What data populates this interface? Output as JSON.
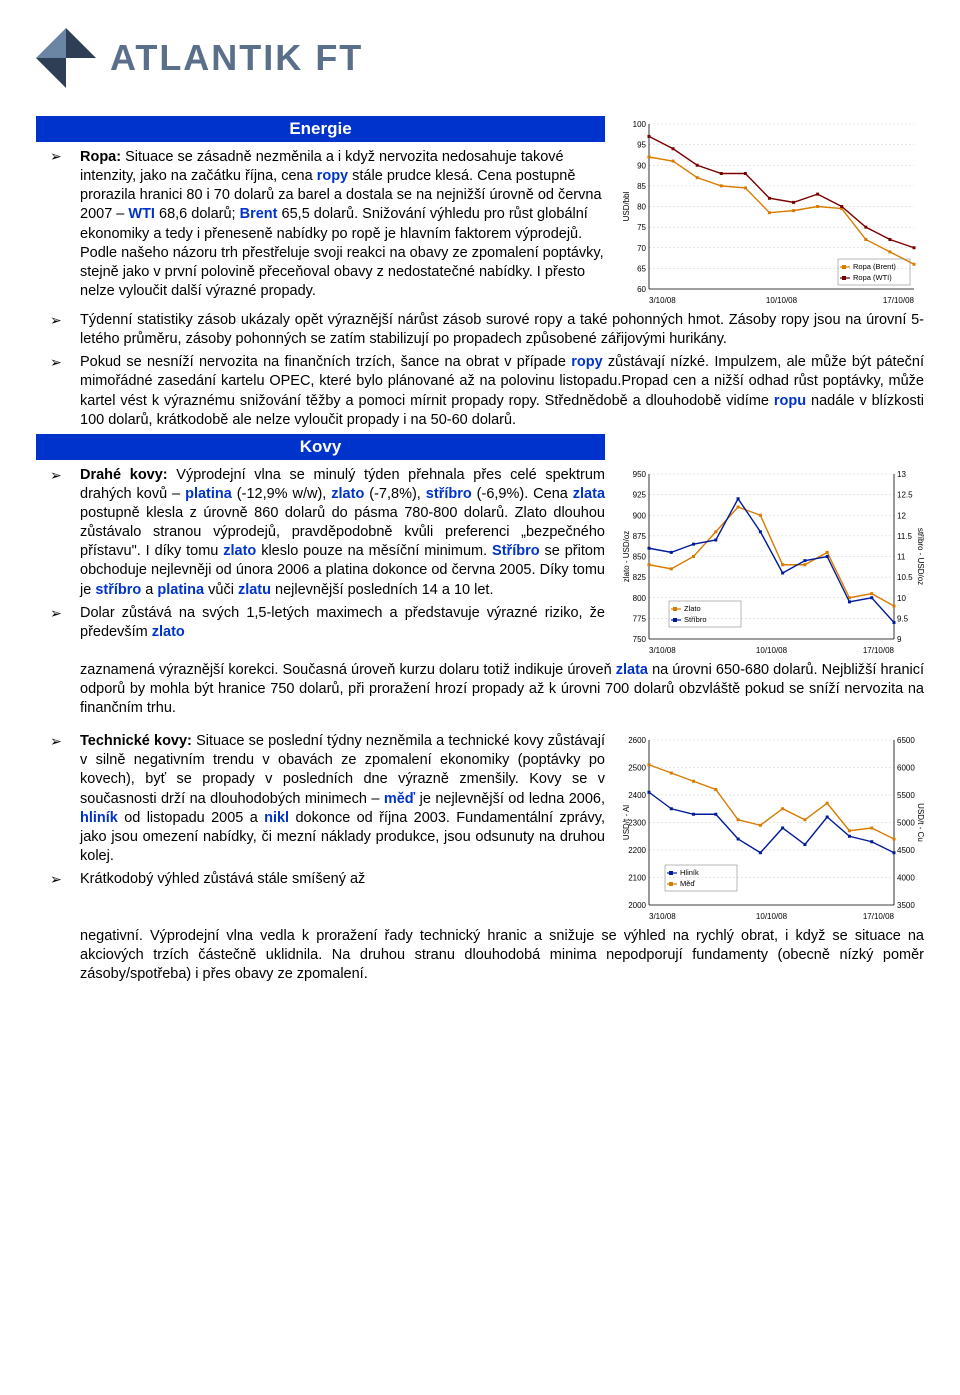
{
  "logo": {
    "text1": "ATLANTIK",
    "text2": "FT"
  },
  "colors": {
    "heading_bg": "#0033cc",
    "heading_fg": "#ffffff",
    "text_blue": "#0033cc",
    "logo_dark": "#2e3f55",
    "logo_light": "#6b85a5",
    "series_orange": "#d97b00",
    "series_darkred": "#7a0000",
    "series_navy": "#001a99",
    "grid": "#cccccc"
  },
  "energie": {
    "heading": "Energie",
    "para1_pre": "Ropa:",
    "para1": "Situace se zásadně nezměnila a i když nervozita nedosahuje takové intenzity, jako na začátku října, cena ",
    "para1_b1": "ropy",
    "para1_c": " stále prudce klesá. Cena postupně prorazila hranici 80 i 70 dolarů za barel a dostala se na nejnižší úrovně od června 2007 – ",
    "para1_b2": "WTI",
    "para1_c2": " 68,6 dolarů; ",
    "para1_b3": "Brent",
    "para1_c3": " 65,5 dolarů. Snižování výhledu pro růst globální ekonomiky a tedy i přeneseně nabídky po ropě je hlavním faktorem výprodejů. Podle našeho názoru trh přestřeluje svoji reakci na obavy ze zpomalení poptávky, stejně jako v první polovině přeceňoval obavy z nedostatečné nabídky. I přesto nelze vyloučit další výrazné propady.",
    "bullet2": "Týdenní statistiky zásob ukázaly opět výraznější nárůst zásob surové ropy a také pohonných hmot. Zásoby ropy jsou na úrovní 5-letého průměru, zásoby pohonných se zatím stabilizují po propadech způsobené zářijovými hurikány.",
    "bullet3_a": "Pokud se nesníží nervozita na finančních trzích, šance na obrat v případe ",
    "bullet3_b": "ropy",
    "bullet3_c": " zůstávají nízké. Impulzem, ale může být páteční mimořádné zasedání kartelu OPEC, které bylo plánované až na polovinu listopadu.Propad cen a nižší odhad růst poptávky, může kartel vést k výraznému snižování těžby a pomoci mírnit propady ropy. Střednědobě a dlouhodobě vidíme ",
    "bullet3_d": "ropu",
    "bullet3_e": " nadále v blízkosti 100 dolarů, krátkodobě ale nelze vyloučit propady i na 50-60 dolarů.",
    "chart": {
      "ylabel": "USD/bbl",
      "ylim": [
        60,
        100
      ],
      "ytick_step": 5,
      "xlabels": [
        "3/10/08",
        "10/10/08",
        "17/10/08"
      ],
      "legend": [
        "Ropa (Brent)",
        "Ropa (WTI)"
      ],
      "series": [
        {
          "name": "Ropa (Brent)",
          "color": "#d97b00",
          "values": [
            92,
            91,
            87,
            85,
            84.5,
            78.5,
            79,
            80,
            79.5,
            72,
            69,
            66
          ]
        },
        {
          "name": "Ropa (WTI)",
          "color": "#7a0000",
          "values": [
            97,
            94,
            90,
            88,
            88,
            82,
            81,
            83,
            80,
            75,
            72,
            70
          ]
        }
      ]
    }
  },
  "kovy": {
    "heading": "Kovy",
    "p1_a": "Drahé kovy:",
    "p1_b": " Výprodejní vlna se minulý týden přehnala přes celé spektrum drahých kovů – ",
    "p1_c": "platina",
    "p1_d": " (-12,9% w/w), ",
    "p1_e": "zlato",
    "p1_f": " (-7,8%),",
    "p1_g": "stříbro",
    "p1_h": " (-6,9%). Cena ",
    "p1_i": "zlata",
    "p1_j": " postupně klesla z úrovně 860 dolarů do pásma 780-800 dolarů. Zlato dlouhou zůstávalo stranou výprodejů, pravděpodobně kvůli preferenci „bezpečného přístavu\". I díky tomu ",
    "p1_k": "zlato",
    "p1_l": " kleslo pouze na měsíční minimum. ",
    "p1_m": "Stříbro",
    "p1_n": " se přitom obchoduje nejlevněji od února 2006 a platina dokonce od června 2005. Díky tomu je ",
    "p1_o": "stříbro",
    "p1_p": " a ",
    "p1_q": "platina",
    "p1_r": " vůči ",
    "p1_s": "zlatu",
    "p1_t": " nejlevnější posledních 14 a 10 let.",
    "p2_a": "Dolar zůstává na svých 1,5-letých maximech a představuje výrazné riziko, že především ",
    "p2_b": "zlato",
    "p2_cont": "zaznamená výraznější korekci. Současná úroveň kurzu dolaru totiž indikuje úroveň ",
    "p2_c": "zlata",
    "p2_d": " na úrovni 650-680 dolarů. Nejbližší hranicí odporů by mohla být hranice 750 dolarů, při proražení hrozí propady až k úrovni 700 dolarů obzvláště pokud se sníží nervozita na finančním trhu.",
    "chart": {
      "ylabel_left": "zlato - USD/oz",
      "ylabel_right": "stříbro - USD/oz",
      "ylim_left": [
        750,
        950
      ],
      "ytick_left": 25,
      "ylim_right": [
        9,
        13
      ],
      "ytick_right": 0.5,
      "xlabels": [
        "3/10/08",
        "10/10/08",
        "17/10/08"
      ],
      "legend": [
        "Zlato",
        "Stříbro"
      ],
      "series": [
        {
          "name": "Zlato",
          "color": "#d97b00",
          "values": [
            840,
            835,
            850,
            880,
            910,
            900,
            840,
            840,
            855,
            800,
            805,
            790
          ]
        },
        {
          "name": "Stříbro",
          "color": "#001a99",
          "values": [
            11.2,
            11.1,
            11.3,
            11.4,
            12.4,
            11.6,
            10.6,
            10.9,
            11.0,
            9.9,
            10.0,
            9.4
          ]
        }
      ]
    },
    "tech_a": "Technické kovy:",
    "tech_b": " Situace se poslední týdny nezněmila a technické kovy zůstávají v silně negativním trendu v obavách ze zpomalení ekonomiky (poptávky po kovech), byť se propady v posledních dne výrazně zmenšily. Kovy se v současnosti drží na dlouhodobých minimech – ",
    "tech_c": "měď",
    "tech_d": " je nejlevnější od ledna 2006, ",
    "tech_e": "hliník",
    "tech_f": " od listopadu 2005 a ",
    "tech_g": "nikl",
    "tech_h": " dokonce od října 2003. Fundamentální zprávy, jako jsou omezení nabídky, či mezní náklady produkce, jsou odsunuty na druhou kolej.",
    "tech2": "Krátkodobý výhled zůstává stále smíšený až",
    "tech_cont": "negativní. Výprodejní vlna vedla k proražení řady technický hranic a snižuje se výhled na rychlý obrat, i když se situace na akciových trzích částečně uklidnila. Na druhou stranu dlouhodobá minima nepodporují fundamenty (obecně nízký poměr zásoby/spotřeba) i přes obavy ze zpomalení.",
    "chart2": {
      "ylabel_left": "USD/t - Al",
      "ylabel_right": "USD/t - Cu",
      "ylim_left": [
        2000,
        2600
      ],
      "ytick_left": 100,
      "ylim_right": [
        3500,
        6500
      ],
      "ytick_right": 500,
      "xlabels": [
        "3/10/08",
        "10/10/08",
        "17/10/08"
      ],
      "legend": [
        "Hliník",
        "Měď"
      ],
      "series": [
        {
          "name": "Hliník",
          "color": "#001a99",
          "values": [
            2410,
            2350,
            2330,
            2330,
            2240,
            2190,
            2280,
            2220,
            2320,
            2250,
            2230,
            2190
          ]
        },
        {
          "name": "Měď",
          "color": "#d97b00",
          "values": [
            6050,
            5900,
            5750,
            5600,
            5050,
            4950,
            5250,
            5050,
            5350,
            4850,
            4900,
            4700
          ]
        }
      ]
    }
  }
}
